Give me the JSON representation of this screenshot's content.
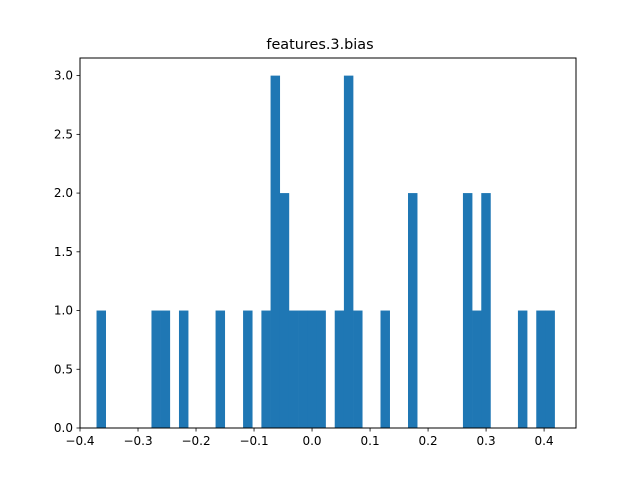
{
  "chart_data": {
    "type": "bar",
    "title": "features.3.bias",
    "xlabel": "",
    "ylabel": "",
    "xlim": [
      -0.4,
      0.455
    ],
    "ylim": [
      0.0,
      3.15
    ],
    "bar_color": "#1f77b4",
    "grid": false,
    "legend": "none",
    "x_ticks": [
      "−0.4",
      "−0.3",
      "−0.2",
      "−0.1",
      "0.0",
      "0.1",
      "0.2",
      "0.3",
      "0.4"
    ],
    "x_tick_values": [
      -0.4,
      -0.3,
      -0.2,
      -0.1,
      0.0,
      0.1,
      0.2,
      0.3,
      0.4
    ],
    "y_ticks": [
      "0.0",
      "0.5",
      "1.0",
      "1.5",
      "2.0",
      "2.5",
      "3.0"
    ],
    "y_tick_values": [
      0.0,
      0.5,
      1.0,
      1.5,
      2.0,
      2.5,
      3.0
    ],
    "bins": [
      {
        "x0": -0.3715,
        "x1": -0.3557,
        "count": 1
      },
      {
        "x0": -0.2768,
        "x1": -0.261,
        "count": 1
      },
      {
        "x0": -0.261,
        "x1": -0.2452,
        "count": 1
      },
      {
        "x0": -0.2294,
        "x1": -0.2136,
        "count": 1
      },
      {
        "x0": -0.1663,
        "x1": -0.1505,
        "count": 1
      },
      {
        "x0": -0.1189,
        "x1": -0.1031,
        "count": 1
      },
      {
        "x0": -0.0873,
        "x1": -0.0715,
        "count": 1
      },
      {
        "x0": -0.0715,
        "x1": -0.0557,
        "count": 3
      },
      {
        "x0": -0.0557,
        "x1": -0.0399,
        "count": 2
      },
      {
        "x0": -0.0399,
        "x1": -0.0241,
        "count": 1
      },
      {
        "x0": -0.0241,
        "x1": -0.0083,
        "count": 1
      },
      {
        "x0": -0.0083,
        "x1": 0.0075,
        "count": 1
      },
      {
        "x0": 0.0075,
        "x1": 0.0233,
        "count": 1
      },
      {
        "x0": 0.0391,
        "x1": 0.0549,
        "count": 1
      },
      {
        "x0": 0.0549,
        "x1": 0.0707,
        "count": 3
      },
      {
        "x0": 0.0707,
        "x1": 0.0865,
        "count": 1
      },
      {
        "x0": 0.118,
        "x1": 0.1338,
        "count": 1
      },
      {
        "x0": 0.1654,
        "x1": 0.1812,
        "count": 2
      },
      {
        "x0": 0.2601,
        "x1": 0.2759,
        "count": 2
      },
      {
        "x0": 0.2759,
        "x1": 0.2917,
        "count": 1
      },
      {
        "x0": 0.2917,
        "x1": 0.3075,
        "count": 2
      },
      {
        "x0": 0.3549,
        "x1": 0.3707,
        "count": 1
      },
      {
        "x0": 0.3865,
        "x1": 0.4023,
        "count": 1
      },
      {
        "x0": 0.4023,
        "x1": 0.4181,
        "count": 1
      }
    ]
  }
}
